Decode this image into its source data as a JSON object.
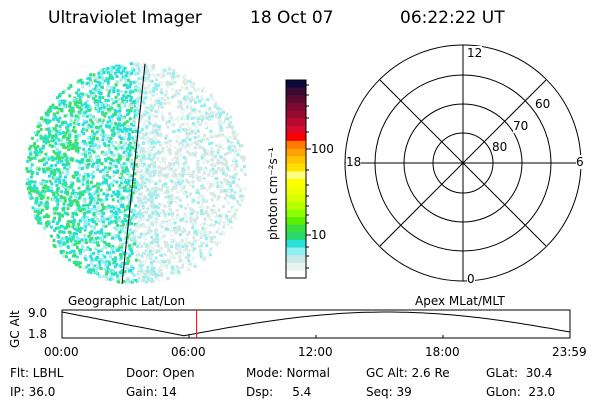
{
  "header": {
    "instrument": "Ultraviolet Imager",
    "date": "18 Oct 07",
    "time": "06:22:22 UT"
  },
  "colorbar": {
    "label": "photon cm⁻²s⁻¹",
    "tick_100": "100",
    "tick_10": "10",
    "colors": [
      "#0a0a3a",
      "#3a0a30",
      "#5a0a2e",
      "#7a0a30",
      "#990a30",
      "#b80a30",
      "#d80a30",
      "#ff0000",
      "#ff7a00",
      "#ffa000",
      "#ffc400",
      "#ffe000",
      "#ffff80",
      "#ffff00",
      "#eeff00",
      "#d8ff00",
      "#b8ff00",
      "#8cff00",
      "#5cf000",
      "#3ae040",
      "#2ad870",
      "#28e0d8",
      "#90f0f0",
      "#c8e8e8",
      "#e8f4ee",
      "#ffffff"
    ]
  },
  "polar": {
    "labels": {
      "top": "12",
      "left": "18",
      "right": "6",
      "bottom": "0"
    },
    "rings": [
      "60",
      "70",
      "80"
    ]
  },
  "timeline": {
    "left_label": "Geographic Lat/Lon",
    "right_label": "Apex MLat/MLT",
    "ylabel": "GC Alt",
    "ymax": "9.0",
    "ymin": "1.8",
    "xticks": [
      "00:00",
      "06:00",
      "12:00",
      "18:00",
      "23:59"
    ],
    "current_time_fraction": 0.265,
    "marker_color": "#ff0000"
  },
  "status": {
    "flt": "Flt: LBHL",
    "ip": "IP: 36.0",
    "door": "Door: Open",
    "gain": "Gain: 14",
    "mode": "Mode: Normal",
    "dsp": "Dsp:     5.4",
    "gcalt": "GC Alt: 2.6 Re",
    "seq": "Seq: 39",
    "glat": "GLat:  30.4",
    "glon": "GLon:  23.0"
  }
}
